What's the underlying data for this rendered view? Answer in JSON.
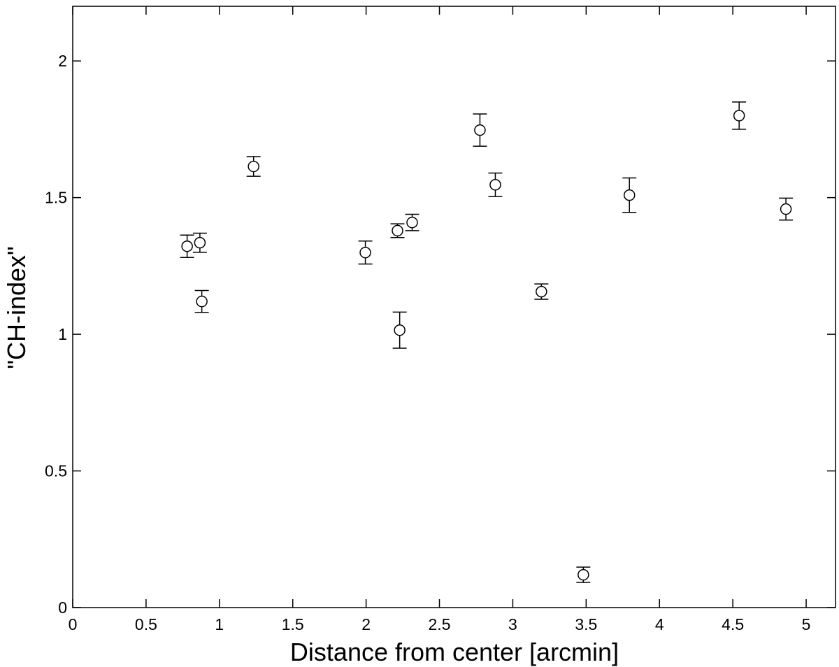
{
  "chart_data": {
    "type": "scatter",
    "x_label": "Distance from center [arcmin]",
    "y_label": "\"CH-index\"",
    "x": [
      0.78,
      0.867,
      0.88,
      1.233,
      1.995,
      2.214,
      2.229,
      2.314,
      2.776,
      2.881,
      3.195,
      3.481,
      3.795,
      4.543,
      4.862
    ],
    "values": [
      1.322,
      1.335,
      1.12,
      1.614,
      1.299,
      1.379,
      1.015,
      1.409,
      1.747,
      1.547,
      1.156,
      0.12,
      1.509,
      1.8,
      1.458
    ],
    "errors": [
      0.041,
      0.035,
      0.04,
      0.036,
      0.042,
      0.025,
      0.066,
      0.03,
      0.059,
      0.043,
      0.028,
      0.028,
      0.063,
      0.05,
      0.04
    ],
    "color": "#000000",
    "xlim": [
      0,
      5.2
    ],
    "ylim": [
      0,
      2.2
    ],
    "xticks": [
      0,
      0.5,
      1,
      1.5,
      2,
      2.5,
      3,
      3.5,
      4,
      4.5,
      5
    ],
    "yticks": [
      0,
      0.5,
      1,
      1.5,
      2
    ]
  }
}
